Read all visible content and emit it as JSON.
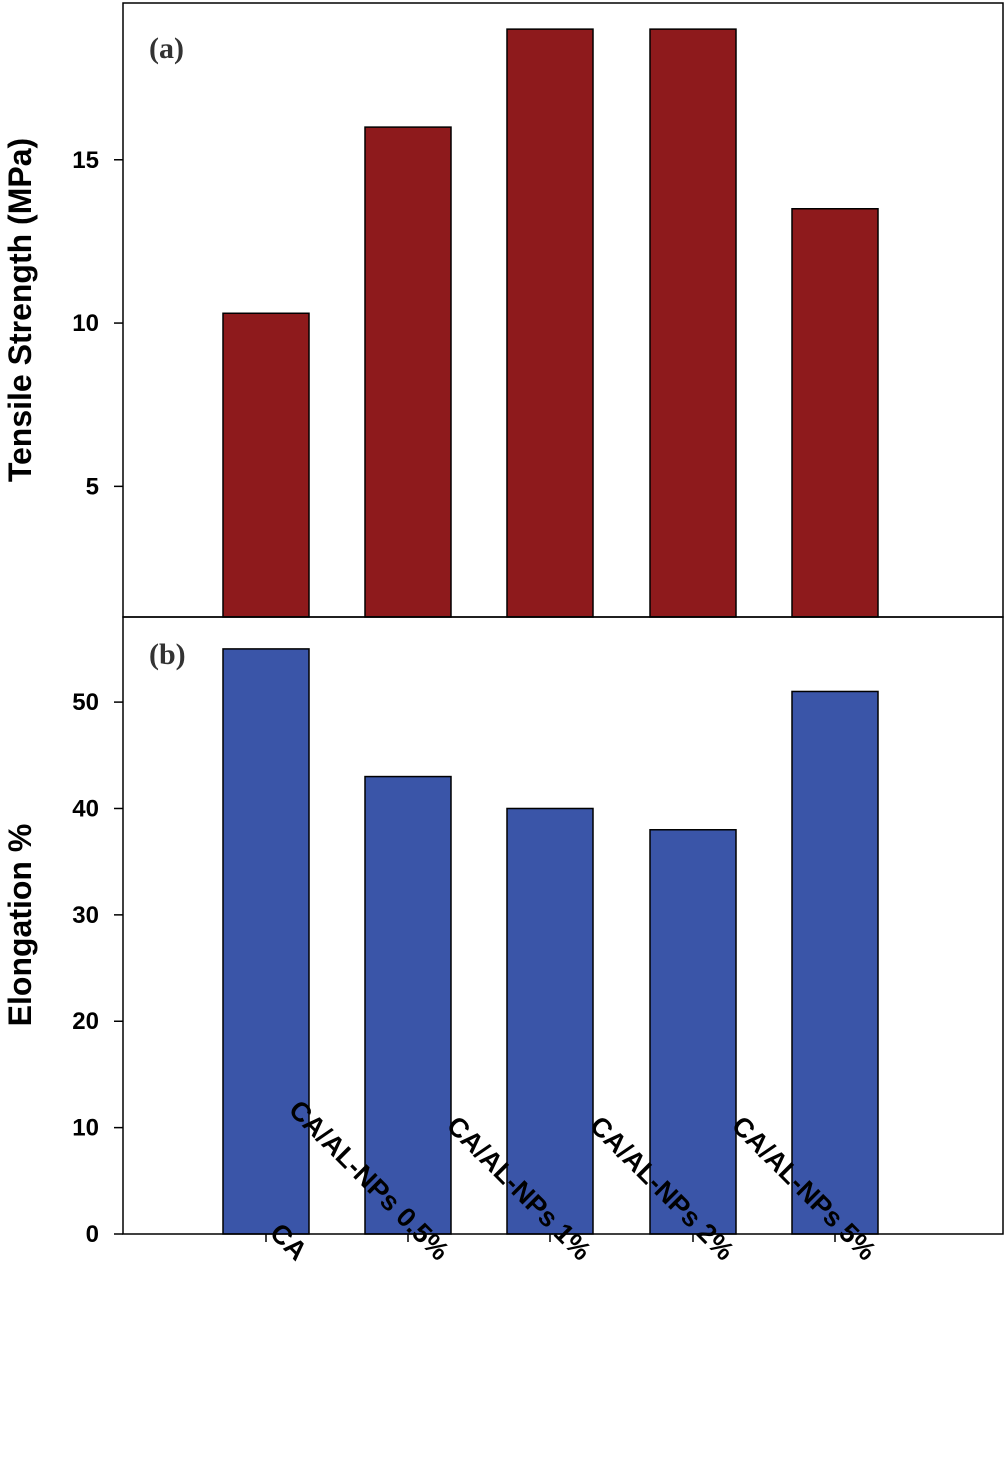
{
  "chart_data": [
    {
      "type": "bar",
      "panel_label": "(a)",
      "categories": [
        "CA",
        "CA/AL-NPs 0.5%",
        "CA/AL-NPs 1%",
        "CA/AL-NPs 2%",
        "CA/AL-NPs 5%"
      ],
      "values": [
        10.3,
        16.0,
        19.0,
        19.0,
        13.5
      ],
      "ylabel": "Tensile Strength (MPa)",
      "ylim": [
        1.0,
        19.8
      ],
      "yticks": [
        5,
        10,
        15
      ],
      "color": "#8e1a1c",
      "grid": false
    },
    {
      "type": "bar",
      "panel_label": "(b)",
      "categories": [
        "CA",
        "CA/AL-NPs 0.5%",
        "CA/AL-NPs 1%",
        "CA/AL-NPs 2%",
        "CA/AL-NPs 5%"
      ],
      "values": [
        55,
        43,
        40,
        38,
        51
      ],
      "ylabel": "Elongation %",
      "ylim": [
        0,
        58
      ],
      "yticks": [
        0,
        10,
        20,
        30,
        40,
        50
      ],
      "color": "#3a55a8",
      "grid": false
    }
  ]
}
